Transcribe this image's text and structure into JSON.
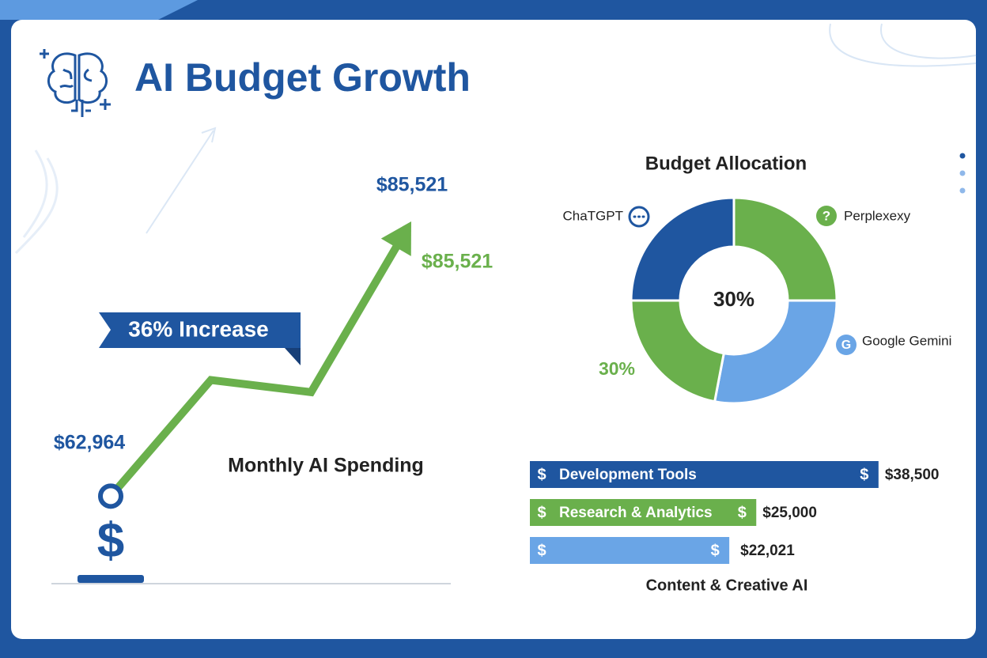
{
  "title": "AI Budget Growth",
  "icon_glyphs": [
    "$",
    "?",
    "G"
  ],
  "chart_data": [
    {
      "type": "line",
      "title": "Monthly AI Spending",
      "badge": "36% Increase",
      "categories": [
        null,
        null,
        null,
        null
      ],
      "values": [
        62964,
        72500,
        71500,
        85521
      ],
      "value_labels": [
        "$62,964",
        null,
        null,
        "$85,521"
      ],
      "annotation": "$85,521",
      "ylim": [
        60000,
        90000
      ],
      "color": "#6ab04c"
    },
    {
      "type": "pie",
      "title": "Budget Allocation",
      "categories": [
        "ChaTGPT",
        "Perplexexy",
        "Google Gemini",
        null
      ],
      "values": [
        25,
        25,
        28,
        22
      ],
      "colors": [
        "#1f56a0",
        "#6ab04c",
        "#6aa5e6",
        "#6ab04c"
      ],
      "center_label": "30%",
      "annotation": "30%"
    },
    {
      "type": "hbar",
      "xlabel": "Content & Creative AI",
      "categories": [
        "Development Tools",
        "Research & Analytics",
        null
      ],
      "values": [
        38500,
        25000,
        22021
      ],
      "value_labels": [
        "$38,500",
        "$25,000",
        "$22,021"
      ],
      "colors": [
        "#1f56a0",
        "#6ab04c",
        "#6aa5e6"
      ],
      "xlim": [
        0,
        40000
      ]
    }
  ]
}
